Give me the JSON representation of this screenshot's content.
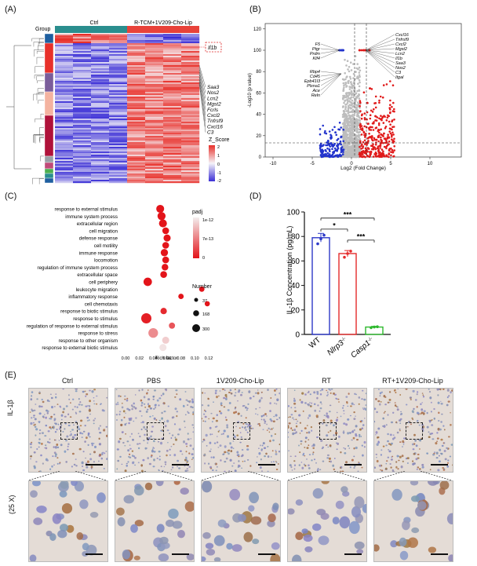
{
  "panels": {
    "a": "(A)",
    "b": "(B)",
    "c": "(C)",
    "d": "(D)",
    "e": "(E)"
  },
  "heatmap": {
    "group_label": "Group",
    "ctrl_label": "Ctrl",
    "treat_label": "R-TCM+1V209-Cho-Lip",
    "highlight_gene": "Il1b",
    "genes": [
      "Saa3",
      "Nos2",
      "Lcn2",
      "Mgst2",
      "Fcrls",
      "Cxcl2",
      "Tnfrsf9",
      "Cxcl16",
      "C3"
    ],
    "zscore_title": "Z_Score",
    "zscore_ticks": [
      "2",
      "1",
      "0",
      "-1",
      "-2"
    ],
    "colors": {
      "high": "#e8302a",
      "mid": "#f5f3f8",
      "low": "#3b2fd6",
      "ctrl_bar": "#2a8e8e",
      "treat_bar": "#e8423a"
    }
  },
  "volcano": {
    "ylabel": "-Log10 (p value)",
    "xlabel": "Log2 (Fold Change)",
    "x_ticks": [
      "-10",
      "-5",
      "0",
      "5",
      "10"
    ],
    "y_ticks": [
      "0",
      "20",
      "40",
      "60",
      "80",
      "100",
      "120"
    ],
    "left_genes_top": [
      "F5",
      "Ptgr",
      "Prdm",
      "Klf4"
    ],
    "left_genes_mid": [
      "Rbp4",
      "Cd45",
      "Epb41l3",
      "Plxna1",
      "Ace",
      "Reln"
    ],
    "right_genes": [
      "Cxcl16",
      "Tnfrsf9",
      "Cxcl2",
      "Mgst2",
      "Lcn2",
      "Il1b",
      "Saa3",
      "Nos2",
      "C3",
      "Itgal"
    ]
  },
  "chart_data": [
    {
      "type": "scatter",
      "title": "",
      "xlabel": "Rich factor",
      "ylabel": "",
      "x_ticks": [
        "0.00",
        "0.02",
        "0.04",
        "0.06",
        "0.08",
        "0.10",
        "0.12"
      ],
      "xlim": [
        0,
        0.12
      ],
      "color_legend_title": "padj",
      "color_legend_ticks": [
        "1e-12",
        "7e-13",
        "0"
      ],
      "size_legend_title": "Number",
      "size_legend_ticks": [
        "37",
        "168",
        "300"
      ],
      "categories": [
        "response to external stimulus",
        "immune system process",
        "extracellular region",
        "cell migration",
        "defense response",
        "cell motility",
        "immune response",
        "locomotion",
        "regulation of immune system process",
        "extracellular space",
        "cell periphery",
        "leukocyte migration",
        "inflammatory response",
        "cell chemotaxis",
        "response to biotic stimulus",
        "response to stimulus",
        "regulation of response to external stimulus",
        "response to stress",
        "response to other organism",
        "response to external biotic stimulus"
      ],
      "x": [
        0.05,
        0.052,
        0.054,
        0.058,
        0.06,
        0.058,
        0.056,
        0.058,
        0.057,
        0.055,
        0.032,
        0.11,
        0.08,
        0.118,
        0.055,
        0.03,
        0.067,
        0.04,
        0.058,
        0.054
      ],
      "number": [
        150,
        160,
        150,
        95,
        110,
        95,
        120,
        95,
        90,
        95,
        180,
        45,
        45,
        40,
        80,
        300,
        70,
        260,
        110,
        110
      ],
      "padj_level": [
        0,
        0,
        0,
        0,
        0,
        0,
        0,
        0,
        0,
        0,
        0,
        0,
        0,
        0,
        0.1,
        0.05,
        0.3,
        0.55,
        0.85,
        0.95
      ]
    },
    {
      "type": "bar",
      "title": "",
      "ylabel": "IL-1β Concentration (pg/mL)",
      "xlabel": "",
      "categories": [
        "WT",
        "Nlrp3-/-",
        "Casp1-/-"
      ],
      "category_labels": [
        "WT",
        "Nlrp3",
        "Casp1"
      ],
      "category_superscripts": [
        "",
        "-/-",
        "-/-"
      ],
      "values": [
        79,
        66,
        6
      ],
      "errors": [
        3.5,
        2.5,
        0.6
      ],
      "points": [
        [
          74,
          78,
          81
        ],
        [
          63,
          66,
          68
        ],
        [
          5.5,
          6,
          6.3
        ]
      ],
      "ylim": [
        0,
        100
      ],
      "y_ticks": [
        "0",
        "20",
        "40",
        "60",
        "80",
        "100"
      ],
      "colors": [
        "#2d39c8",
        "#e42b2b",
        "#2db82d"
      ],
      "significance": [
        {
          "from": 0,
          "to": 1,
          "label": "*"
        },
        {
          "from": 0,
          "to": 2,
          "label": "***"
        },
        {
          "from": 1,
          "to": 2,
          "label": "***"
        }
      ]
    }
  ],
  "ihc": {
    "row_label": "IL-1β",
    "zoom_label": "(25 X)",
    "columns": [
      "Ctrl",
      "PBS",
      "1V209-Cho-Lip",
      "RT",
      "RT+1V209-Cho-Lip"
    ],
    "stain_level": [
      0.35,
      0.3,
      0.45,
      0.55,
      0.75
    ]
  }
}
